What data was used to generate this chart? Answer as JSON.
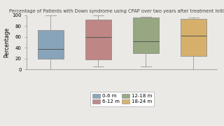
{
  "title": "Percentage of Patients with Down syndrome using CPAP over two years after treatment initiated",
  "ylabel": "Percentage",
  "ylim": [
    0,
    100
  ],
  "yticks": [
    0,
    20,
    40,
    60,
    80,
    100
  ],
  "boxes": [
    {
      "label": "0-6 m",
      "color": "#7b9bb5",
      "whisker_low": 0,
      "q1": 20,
      "median": 38,
      "q3": 73,
      "whisker_high": 100,
      "x": 1
    },
    {
      "label": "6-12 m",
      "color": "#b87878",
      "whisker_low": 5,
      "q1": 18,
      "median": 60,
      "q3": 92,
      "whisker_high": 100,
      "x": 2
    },
    {
      "label": "12-18 m",
      "color": "#8a9e74",
      "whisker_low": 5,
      "q1": 30,
      "median": 52,
      "q3": 95,
      "whisker_high": 97,
      "x": 3
    },
    {
      "label": "18-24 m",
      "color": "#d4a85a",
      "whisker_low": 0,
      "q1": 25,
      "median": 62,
      "q3": 93,
      "whisker_high": 95,
      "x": 4
    }
  ],
  "legend_order": [
    "0-6 m",
    "6-12 m",
    "12-18 m",
    "18-24 m"
  ],
  "background_color": "#ebe9e5",
  "title_fontsize": 4.8,
  "label_fontsize": 5.5,
  "tick_fontsize": 5.0
}
